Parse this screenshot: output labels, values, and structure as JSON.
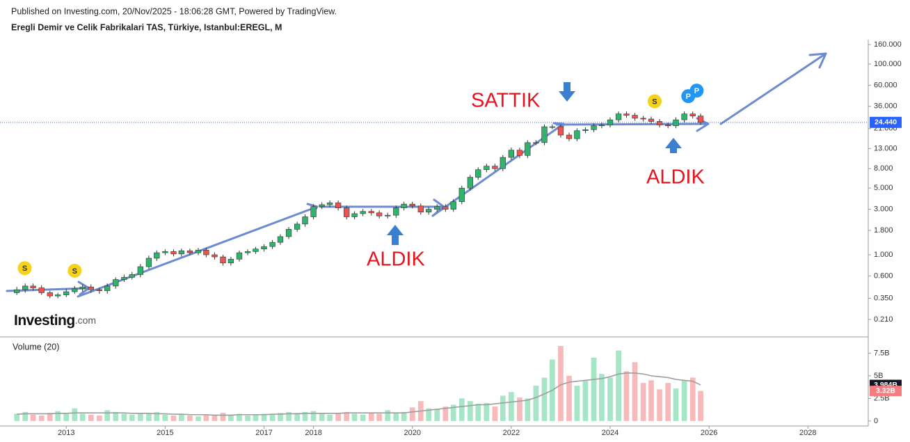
{
  "chart_data": {
    "type": "candlestick",
    "source": "Published on Investing.com, 20/Nov/2025 - 18:06:28 GMT, Powered by TradingView.",
    "title": "Eregli Demir ve Celik Fabrikalari TAS, Türkiye, Istanbul:EREGL, M",
    "logo": "Investing",
    "logo_suffix": ".com",
    "annotations": [
      {
        "text": "SATTIK"
      },
      {
        "text": "ALDIK"
      },
      {
        "text": "ALDIK"
      }
    ],
    "events": [
      {
        "label": "S",
        "x": 2012.16,
        "color": "#f5d21b"
      },
      {
        "label": "S",
        "x": 2013.17,
        "color": "#f5d21b"
      },
      {
        "label": "S",
        "x": 2024.9,
        "color": "#f5d21b"
      },
      {
        "label": "P",
        "x": 2025.58,
        "color": "#2196f3"
      },
      {
        "label": "P",
        "x": 2025.75,
        "color": "#2196f3"
      }
    ],
    "up_color": "#2fb36d",
    "down_color": "#ef5350",
    "x": [
      2012.0,
      2012.17,
      2012.33,
      2012.5,
      2012.67,
      2012.83,
      2013.0,
      2013.17,
      2013.33,
      2013.5,
      2013.67,
      2013.83,
      2014.0,
      2014.17,
      2014.33,
      2014.5,
      2014.67,
      2014.83,
      2015.0,
      2015.17,
      2015.33,
      2015.5,
      2015.67,
      2015.83,
      2016.0,
      2016.17,
      2016.33,
      2016.5,
      2016.67,
      2016.83,
      2017.0,
      2017.17,
      2017.33,
      2017.5,
      2017.67,
      2017.83,
      2018.0,
      2018.17,
      2018.33,
      2018.5,
      2018.67,
      2018.83,
      2019.0,
      2019.17,
      2019.33,
      2019.5,
      2019.67,
      2019.83,
      2020.0,
      2020.17,
      2020.33,
      2020.5,
      2020.67,
      2020.83,
      2021.0,
      2021.17,
      2021.33,
      2021.5,
      2021.67,
      2021.83,
      2022.0,
      2022.17,
      2022.33,
      2022.5,
      2022.67,
      2022.83,
      2023.0,
      2023.17,
      2023.33,
      2023.5,
      2023.67,
      2023.83,
      2024.0,
      2024.17,
      2024.33,
      2024.5,
      2024.67,
      2024.83,
      2025.0,
      2025.17,
      2025.33,
      2025.5,
      2025.67,
      2025.83
    ],
    "open": [
      0.4,
      0.43,
      0.47,
      0.45,
      0.4,
      0.37,
      0.38,
      0.41,
      0.44,
      0.46,
      0.43,
      0.42,
      0.47,
      0.55,
      0.58,
      0.62,
      0.75,
      0.92,
      1.05,
      1.08,
      1.02,
      1.1,
      1.05,
      1.12,
      1.0,
      0.95,
      0.82,
      0.9,
      1.05,
      1.08,
      1.15,
      1.22,
      1.35,
      1.55,
      1.85,
      2.1,
      2.5,
      3.2,
      3.35,
      3.5,
      3.1,
      2.5,
      2.7,
      2.85,
      2.75,
      2.55,
      2.6,
      3.1,
      3.4,
      3.25,
      2.8,
      3.0,
      3.2,
      3.0,
      3.6,
      5.0,
      6.5,
      7.8,
      8.5,
      8.0,
      10.5,
      12.5,
      11.0,
      15.0,
      15.0,
      22.0,
      22.0,
      18.0,
      16.5,
      20.0,
      20.5,
      22.5,
      23.0,
      26.0,
      30.0,
      29.0,
      27.0,
      26.5,
      25.0,
      23.0,
      22.5,
      26.0,
      30.0,
      28.5
    ],
    "high": [
      0.46,
      0.5,
      0.5,
      0.48,
      0.42,
      0.4,
      0.44,
      0.47,
      0.49,
      0.49,
      0.45,
      0.5,
      0.58,
      0.62,
      0.66,
      0.8,
      0.98,
      1.11,
      1.14,
      1.14,
      1.16,
      1.16,
      1.18,
      1.18,
      1.06,
      1.0,
      0.95,
      1.11,
      1.14,
      1.21,
      1.29,
      1.43,
      1.64,
      1.96,
      2.22,
      2.65,
      3.39,
      3.55,
      3.71,
      3.71,
      3.28,
      2.86,
      3.02,
      3.02,
      2.92,
      2.76,
      3.28,
      3.6,
      3.6,
      3.45,
      3.18,
      3.39,
      3.39,
      3.82,
      5.3,
      6.89,
      8.27,
      9.01,
      9.01,
      11.1,
      13.3,
      13.3,
      15.9,
      15.9,
      23.3,
      23.3,
      23.3,
      19.1,
      21.2,
      21.7,
      23.9,
      24.4,
      27.6,
      31.8,
      31.8,
      30.7,
      28.6,
      28.1,
      26.5,
      24.4,
      27.6,
      31.8,
      31.8,
      30.2
    ],
    "low": [
      0.38,
      0.4,
      0.42,
      0.38,
      0.35,
      0.35,
      0.36,
      0.39,
      0.41,
      0.4,
      0.39,
      0.39,
      0.44,
      0.52,
      0.55,
      0.58,
      0.71,
      0.86,
      0.99,
      0.96,
      0.96,
      0.99,
      0.99,
      0.94,
      0.89,
      0.77,
      0.77,
      0.85,
      0.99,
      1.02,
      1.08,
      1.15,
      1.27,
      1.46,
      1.74,
      1.97,
      2.35,
      3.01,
      3.15,
      2.91,
      2.35,
      2.35,
      2.54,
      2.58,
      2.4,
      2.4,
      2.44,
      2.91,
      3.06,
      2.63,
      2.63,
      2.82,
      2.82,
      2.82,
      3.38,
      4.7,
      6.11,
      7.33,
      7.52,
      7.52,
      9.87,
      10.3,
      10.3,
      14.1,
      14.1,
      20.7,
      16.9,
      15.5,
      15.5,
      18.8,
      19.3,
      21.2,
      21.6,
      24.4,
      27.3,
      25.4,
      24.9,
      23.5,
      21.6,
      21.2,
      21.2,
      24.4,
      26.8,
      23.0
    ],
    "close": [
      0.43,
      0.47,
      0.45,
      0.4,
      0.37,
      0.38,
      0.41,
      0.44,
      0.46,
      0.43,
      0.42,
      0.47,
      0.55,
      0.58,
      0.62,
      0.75,
      0.92,
      1.05,
      1.08,
      1.02,
      1.1,
      1.05,
      1.12,
      1.0,
      0.95,
      0.82,
      0.9,
      1.05,
      1.08,
      1.15,
      1.22,
      1.35,
      1.55,
      1.85,
      2.1,
      2.5,
      3.2,
      3.35,
      3.5,
      3.1,
      2.5,
      2.7,
      2.85,
      2.75,
      2.55,
      2.6,
      3.1,
      3.4,
      3.25,
      2.8,
      3.0,
      3.2,
      3.0,
      3.6,
      5.0,
      6.5,
      7.8,
      8.5,
      8.0,
      10.5,
      12.5,
      11.0,
      15.0,
      15.0,
      22.0,
      22.0,
      18.0,
      16.5,
      20.0,
      20.5,
      22.5,
      23.0,
      26.0,
      30.0,
      29.0,
      27.0,
      26.5,
      25.0,
      23.0,
      22.5,
      26.0,
      30.0,
      28.5,
      24.44
    ],
    "xlim": [
      2011.66,
      2029.22
    ],
    "xticks": [
      2013,
      2015,
      2017,
      2018,
      2020,
      2022,
      2024,
      2026,
      2028
    ],
    "log_y": true,
    "ylim": [
      0.14,
      180
    ],
    "yticks": [
      {
        "value": 0.21,
        "label": "0.210"
      },
      {
        "value": 0.35,
        "label": "0.350"
      },
      {
        "value": 0.6,
        "label": "0.600"
      },
      {
        "value": 1,
        "label": "1.000"
      },
      {
        "value": 1.8,
        "label": "1.800"
      },
      {
        "value": 3,
        "label": "3.000"
      },
      {
        "value": 5,
        "label": "5.000"
      },
      {
        "value": 8,
        "label": "8.000"
      },
      {
        "value": 13,
        "label": "13.000"
      },
      {
        "value": 21,
        "label": "21.000"
      },
      {
        "value": 36,
        "label": "36.000"
      },
      {
        "value": 60,
        "label": "60.000"
      },
      {
        "value": 100,
        "label": "100.000"
      },
      {
        "value": 160,
        "label": "160.000"
      }
    ],
    "last_price": {
      "value": 24.44,
      "label": "24.440",
      "color": "#2962ff"
    },
    "volume": {
      "title": "Volume (20)",
      "up_color": "#a6e6c6",
      "down_color": "#f7b9b9",
      "ma_color": "#9e9e9e",
      "values": [
        0.8,
        1.0,
        0.7,
        0.6,
        0.9,
        1.1,
        0.9,
        1.4,
        0.8,
        0.7,
        0.6,
        1.2,
        1.0,
        0.8,
        0.7,
        0.9,
        0.8,
        1.0,
        0.7,
        0.6,
        0.8,
        0.6,
        0.5,
        0.7,
        0.6,
        0.9,
        0.7,
        0.8,
        0.6,
        0.7,
        0.8,
        0.7,
        0.9,
        1.0,
        0.9,
        1.0,
        1.1,
        0.8,
        0.7,
        0.9,
        1.0,
        0.8,
        0.7,
        0.9,
        0.8,
        1.2,
        0.9,
        1.0,
        1.5,
        2.2,
        1.4,
        1.3,
        1.6,
        1.8,
        2.5,
        2.2,
        1.9,
        2.0,
        1.6,
        2.8,
        3.2,
        2.6,
        2.5,
        3.9,
        4.8,
        6.8,
        8.3,
        5.0,
        3.9,
        4.5,
        7.0,
        5.2,
        4.8,
        7.8,
        5.5,
        6.5,
        4.2,
        4.5,
        3.5,
        4.2,
        3.6,
        4.5,
        4.8,
        3.32
      ],
      "ma": [
        0.75,
        0.8,
        0.8,
        0.8,
        0.8,
        0.85,
        0.85,
        0.9,
        0.9,
        0.9,
        0.9,
        0.9,
        0.9,
        0.9,
        0.85,
        0.85,
        0.85,
        0.8,
        0.8,
        0.75,
        0.75,
        0.7,
        0.7,
        0.7,
        0.65,
        0.65,
        0.65,
        0.7,
        0.7,
        0.7,
        0.7,
        0.75,
        0.75,
        0.8,
        0.8,
        0.85,
        0.85,
        0.85,
        0.85,
        0.85,
        0.9,
        0.9,
        0.9,
        0.9,
        0.9,
        0.9,
        0.9,
        0.9,
        1.0,
        1.1,
        1.2,
        1.3,
        1.4,
        1.5,
        1.6,
        1.7,
        1.8,
        1.8,
        1.9,
        2.0,
        2.1,
        2.2,
        2.3,
        2.6,
        3.0,
        3.4,
        4.0,
        4.3,
        4.4,
        4.5,
        4.6,
        4.7,
        4.9,
        5.2,
        5.3,
        5.3,
        5.2,
        5.0,
        4.9,
        4.8,
        4.6,
        4.5,
        4.4,
        3.984
      ],
      "ylim": [
        -0.55,
        9.3
      ],
      "yticks": [
        0,
        {
          "value": 2.5,
          "label": "2.5B"
        },
        {
          "value": 5,
          "label": "5B"
        },
        {
          "value": 7.5,
          "label": "7.5B"
        }
      ],
      "volume_label": {
        "value": 3.32,
        "label": "3.32B",
        "color": "#f77c80"
      },
      "ma_label": {
        "value": 3.984,
        "label": "3.984B",
        "color": "#131722"
      }
    }
  }
}
